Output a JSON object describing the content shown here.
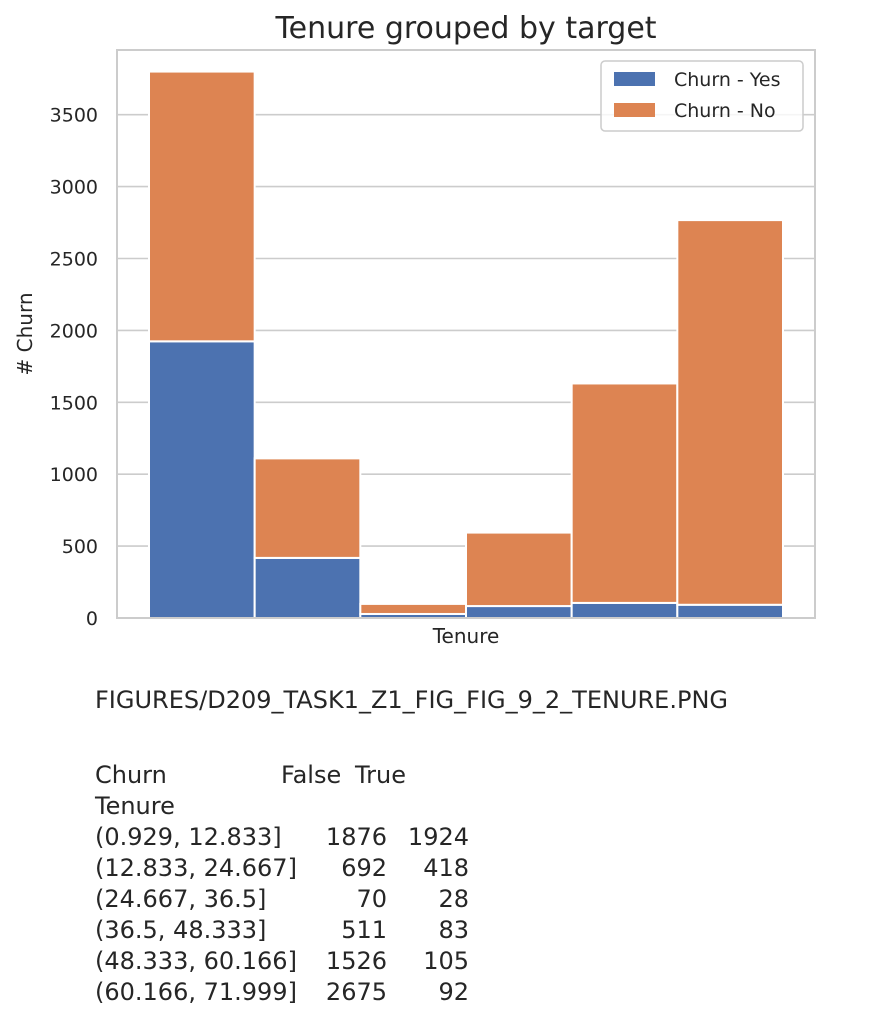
{
  "chart_data": {
    "type": "bar",
    "stacked": true,
    "title": "Tenure grouped by target",
    "xlabel": "Tenure",
    "ylabel": "# Churn",
    "ylim": [
      0,
      3950
    ],
    "yticks": [
      0,
      500,
      1000,
      1500,
      2000,
      2500,
      3000,
      3500
    ],
    "categories": [
      "(0.929, 12.833]",
      "(12.833, 24.667]",
      "(24.667, 36.5]",
      "(36.5, 48.333]",
      "(48.333, 60.166]",
      "(60.166, 71.999]"
    ],
    "series": [
      {
        "name": "Churn - Yes",
        "color": "#4c72b0",
        "values": [
          1924,
          418,
          28,
          83,
          105,
          92
        ]
      },
      {
        "name": "Churn - No",
        "color": "#dd8452",
        "values": [
          1876,
          692,
          70,
          511,
          1526,
          2675
        ]
      }
    ],
    "grid": true,
    "legend": "top-right"
  },
  "figure_path": "FIGURES/D209_TASK1_Z1_FIG_FIG_9_2_TENURE.PNG",
  "crosstab": {
    "header": {
      "label": "Churn",
      "false": "False",
      "true": "True"
    },
    "index_name": "Tenure",
    "rows": [
      {
        "label": "(0.929, 12.833]",
        "false": "1876",
        "true": "1924"
      },
      {
        "label": "(12.833, 24.667]",
        "false": "692",
        "true": "418"
      },
      {
        "label": "(24.667, 36.5]",
        "false": "70",
        "true": "28"
      },
      {
        "label": "(36.5, 48.333]",
        "false": "511",
        "true": "83"
      },
      {
        "label": "(48.333, 60.166]",
        "false": "1526",
        "true": "105"
      },
      {
        "label": "(60.166, 71.999]",
        "false": "2675",
        "true": "92"
      }
    ]
  }
}
